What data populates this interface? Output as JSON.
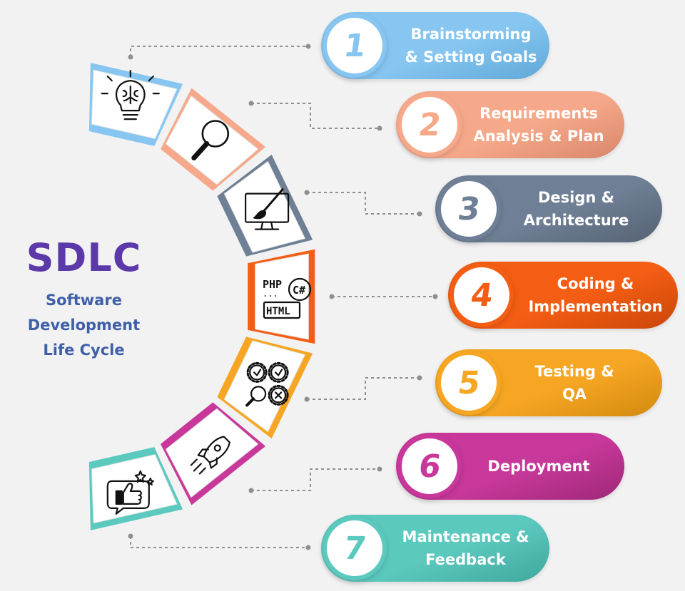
{
  "title": "SDLC",
  "subtitle": [
    "Software",
    "Development",
    "Life Cycle"
  ],
  "steps": [
    {
      "number": "1",
      "lines": [
        "Brainstorming",
        "& Setting Goals"
      ],
      "color": "#86c6f1",
      "dark": "#5fa8d8",
      "icon": "lightbulb-brain-icon"
    },
    {
      "number": "2",
      "lines": [
        "Requirements",
        "Analysis & Plan"
      ],
      "color": "#f6a98a",
      "dark": "#d9866a",
      "icon": "magnifier-icon"
    },
    {
      "number": "3",
      "lines": [
        "Design &",
        "Architecture"
      ],
      "color": "#6f7f95",
      "dark": "#566274",
      "icon": "monitor-paintbrush-icon"
    },
    {
      "number": "4",
      "lines": [
        "Coding &",
        "Implementation"
      ],
      "color": "#f45d14",
      "dark": "#c94608",
      "icon": "code-languages-icon"
    },
    {
      "number": "5",
      "lines": [
        "Testing &",
        "QA"
      ],
      "color": "#f6a623",
      "dark": "#d38a10",
      "icon": "gears-magnifier-icon"
    },
    {
      "number": "6",
      "lines": [
        "Deployment"
      ],
      "color": "#c8389a",
      "dark": "#9e2878",
      "icon": "rocket-icon"
    },
    {
      "number": "7",
      "lines": [
        "Maintenance &",
        "Feedback"
      ],
      "color": "#5cc9bf",
      "dark": "#3fa79e",
      "icon": "thumbs-up-feedback-icon"
    }
  ],
  "icon_text": {
    "php": "PHP",
    "csharp": "C#",
    "html": "HTML",
    "dots": "..."
  }
}
